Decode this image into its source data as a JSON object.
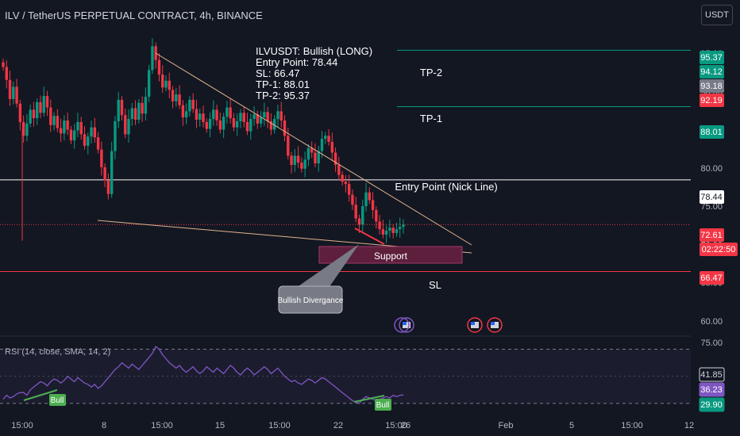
{
  "header": {
    "symbol_line": "ILV / TetherUS PERPETUAL CONTRACT, 4h, BINANCE",
    "currency_button": "USDT"
  },
  "note": {
    "lines": [
      "ILVUSDT: Bullish (LONG)",
      "Entry Point: 78.44",
      "SL: 66.47",
      "TP-1: 88.01",
      "TP-2: 95.37"
    ]
  },
  "rsi": {
    "label": "RSI (14, close, SMA, 14, 2)"
  },
  "chart_data": {
    "type": "candlestick",
    "title": "ILV / TetherUS PERPETUAL CONTRACT, 4h, BINANCE",
    "price_axis": {
      "ticks": [
        "95.00",
        "90.00",
        "85.00",
        "80.00",
        "75.00",
        "70.00",
        "65.00",
        "60.00"
      ],
      "range": [
        57.5,
        97.5
      ]
    },
    "time_axis": {
      "ticks": [
        "15:00",
        "8",
        "15:00",
        "15",
        "15:00",
        "22",
        "15:00",
        "26",
        "Feb",
        "5",
        "15:00",
        "12"
      ]
    },
    "closes": [
      93.2,
      91.5,
      89.0,
      90.6,
      88.4,
      86.0,
      84.2,
      85.8,
      87.6,
      86.5,
      88.6,
      87.2,
      89.4,
      87.9,
      85.6,
      86.8,
      85.2,
      84.5,
      86.2,
      85.0,
      83.6,
      84.9,
      86.0,
      84.4,
      82.9,
      84.1,
      85.3,
      84.0,
      82.4,
      80.1,
      78.4,
      76.6,
      82.2,
      86.1,
      88.9,
      86.9,
      84.4,
      86.4,
      87.8,
      86.3,
      88.5,
      87.1,
      89.3,
      92.8,
      95.9,
      94.1,
      92.2,
      90.5,
      91.4,
      90.2,
      88.7,
      89.6,
      88.2,
      86.6,
      87.4,
      88.9,
      87.7,
      86.3,
      87.1,
      86.0,
      85.1,
      86.4,
      87.6,
      86.2,
      85.0,
      86.7,
      87.9,
      86.5,
      85.3,
      86.1,
      87.2,
      86.0,
      84.8,
      86.4,
      87.0,
      85.8,
      86.6,
      87.3,
      86.1,
      85.0,
      86.4,
      87.4,
      86.2,
      84.2,
      81.6,
      80.4,
      81.6,
      80.7,
      79.9,
      81.1,
      82.6,
      82.0,
      80.6,
      82.2,
      83.8,
      84.2,
      83.4,
      82.0,
      80.4,
      79.1,
      78.2,
      77.9,
      76.5,
      75.2,
      73.4,
      72.6,
      75.0,
      76.8,
      75.8,
      74.5,
      73.0,
      72.0,
      71.3,
      71.8,
      72.2,
      71.5,
      72.0,
      72.3,
      72.61
    ],
    "horizontal_levels": [
      {
        "name": "TP-2",
        "value": 95.37,
        "color": "#089981"
      },
      {
        "name": "TP-1",
        "value": 88.01,
        "color": "#089981"
      },
      {
        "name": "Entry Point (Nick Line)",
        "value": 78.44,
        "color": "#ffffff"
      },
      {
        "name": "SL",
        "value": 66.47,
        "color": "#f23645"
      }
    ],
    "zone": {
      "name": "Support",
      "low": 69.3,
      "high": 71.8
    },
    "callout": "Bullish Divergance",
    "price_labels": [
      {
        "text": "95.37",
        "color": "#089981"
      },
      {
        "text": "94.12",
        "color": "#089981"
      },
      {
        "text": "93.18",
        "color": "#787b86"
      },
      {
        "text": "92.19",
        "color": "#f23645"
      },
      {
        "text": "88.01",
        "color": "#089981"
      },
      {
        "text": "78.44",
        "color": "#ffffff"
      },
      {
        "text": "72.61",
        "color": "#f23645"
      },
      {
        "text": "02:22:50",
        "color": "#f23645"
      },
      {
        "text": "66.47",
        "color": "#f23645"
      }
    ],
    "rsi": {
      "ticks": [
        "75.00",
        "41.85",
        "36.23",
        "29.90"
      ],
      "values": [
        33,
        36,
        34,
        35,
        37,
        38,
        38,
        36,
        40,
        42,
        44,
        46,
        45,
        43,
        46,
        48,
        47,
        45,
        47,
        50,
        48,
        46,
        49,
        47,
        45,
        44,
        42,
        44,
        41,
        43,
        46,
        49,
        52,
        55,
        57,
        60,
        58,
        56,
        59,
        57,
        55,
        58,
        61,
        64,
        67,
        72,
        70,
        66,
        63,
        60,
        58,
        56,
        58,
        55,
        53,
        55,
        57,
        54,
        52,
        54,
        57,
        55,
        53,
        56,
        54,
        52,
        55,
        58,
        56,
        53,
        51,
        54,
        56,
        54,
        51,
        53,
        55,
        57,
        55,
        52,
        54,
        56,
        53,
        50,
        48,
        46,
        47,
        45,
        44,
        46,
        48,
        47,
        45,
        47,
        49,
        48,
        46,
        44,
        42,
        40,
        38,
        36,
        34,
        32,
        31,
        30,
        33,
        35,
        34,
        33,
        32,
        33,
        34,
        35,
        34,
        36,
        35,
        36,
        36.23
      ],
      "markers": [
        "Bull",
        "Bull"
      ]
    }
  }
}
